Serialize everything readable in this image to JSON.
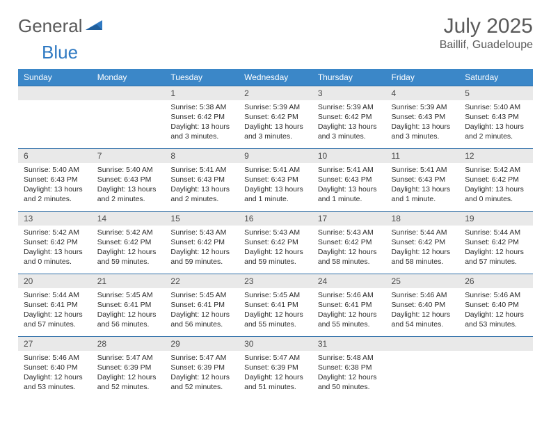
{
  "brand": {
    "part1": "General",
    "part2": "Blue"
  },
  "title": "July 2025",
  "location": "Baillif, Guadeloupe",
  "colors": {
    "header_bg": "#3b87c8",
    "header_text": "#ffffff",
    "daynum_bg": "#e9e9e9",
    "rule": "#2f6fa8",
    "text": "#2b2b2b",
    "muted": "#5a5a5a",
    "brand_blue": "#2f79c2"
  },
  "weekdays": [
    "Sunday",
    "Monday",
    "Tuesday",
    "Wednesday",
    "Thursday",
    "Friday",
    "Saturday"
  ],
  "weeks": [
    [
      {
        "n": "",
        "sunrise": "",
        "sunset": "",
        "daylight": ""
      },
      {
        "n": "",
        "sunrise": "",
        "sunset": "",
        "daylight": ""
      },
      {
        "n": "1",
        "sunrise": "Sunrise: 5:38 AM",
        "sunset": "Sunset: 6:42 PM",
        "daylight": "Daylight: 13 hours and 3 minutes."
      },
      {
        "n": "2",
        "sunrise": "Sunrise: 5:39 AM",
        "sunset": "Sunset: 6:42 PM",
        "daylight": "Daylight: 13 hours and 3 minutes."
      },
      {
        "n": "3",
        "sunrise": "Sunrise: 5:39 AM",
        "sunset": "Sunset: 6:42 PM",
        "daylight": "Daylight: 13 hours and 3 minutes."
      },
      {
        "n": "4",
        "sunrise": "Sunrise: 5:39 AM",
        "sunset": "Sunset: 6:43 PM",
        "daylight": "Daylight: 13 hours and 3 minutes."
      },
      {
        "n": "5",
        "sunrise": "Sunrise: 5:40 AM",
        "sunset": "Sunset: 6:43 PM",
        "daylight": "Daylight: 13 hours and 2 minutes."
      }
    ],
    [
      {
        "n": "6",
        "sunrise": "Sunrise: 5:40 AM",
        "sunset": "Sunset: 6:43 PM",
        "daylight": "Daylight: 13 hours and 2 minutes."
      },
      {
        "n": "7",
        "sunrise": "Sunrise: 5:40 AM",
        "sunset": "Sunset: 6:43 PM",
        "daylight": "Daylight: 13 hours and 2 minutes."
      },
      {
        "n": "8",
        "sunrise": "Sunrise: 5:41 AM",
        "sunset": "Sunset: 6:43 PM",
        "daylight": "Daylight: 13 hours and 2 minutes."
      },
      {
        "n": "9",
        "sunrise": "Sunrise: 5:41 AM",
        "sunset": "Sunset: 6:43 PM",
        "daylight": "Daylight: 13 hours and 1 minute."
      },
      {
        "n": "10",
        "sunrise": "Sunrise: 5:41 AM",
        "sunset": "Sunset: 6:43 PM",
        "daylight": "Daylight: 13 hours and 1 minute."
      },
      {
        "n": "11",
        "sunrise": "Sunrise: 5:41 AM",
        "sunset": "Sunset: 6:43 PM",
        "daylight": "Daylight: 13 hours and 1 minute."
      },
      {
        "n": "12",
        "sunrise": "Sunrise: 5:42 AM",
        "sunset": "Sunset: 6:42 PM",
        "daylight": "Daylight: 13 hours and 0 minutes."
      }
    ],
    [
      {
        "n": "13",
        "sunrise": "Sunrise: 5:42 AM",
        "sunset": "Sunset: 6:42 PM",
        "daylight": "Daylight: 13 hours and 0 minutes."
      },
      {
        "n": "14",
        "sunrise": "Sunrise: 5:42 AM",
        "sunset": "Sunset: 6:42 PM",
        "daylight": "Daylight: 12 hours and 59 minutes."
      },
      {
        "n": "15",
        "sunrise": "Sunrise: 5:43 AM",
        "sunset": "Sunset: 6:42 PM",
        "daylight": "Daylight: 12 hours and 59 minutes."
      },
      {
        "n": "16",
        "sunrise": "Sunrise: 5:43 AM",
        "sunset": "Sunset: 6:42 PM",
        "daylight": "Daylight: 12 hours and 59 minutes."
      },
      {
        "n": "17",
        "sunrise": "Sunrise: 5:43 AM",
        "sunset": "Sunset: 6:42 PM",
        "daylight": "Daylight: 12 hours and 58 minutes."
      },
      {
        "n": "18",
        "sunrise": "Sunrise: 5:44 AM",
        "sunset": "Sunset: 6:42 PM",
        "daylight": "Daylight: 12 hours and 58 minutes."
      },
      {
        "n": "19",
        "sunrise": "Sunrise: 5:44 AM",
        "sunset": "Sunset: 6:42 PM",
        "daylight": "Daylight: 12 hours and 57 minutes."
      }
    ],
    [
      {
        "n": "20",
        "sunrise": "Sunrise: 5:44 AM",
        "sunset": "Sunset: 6:41 PM",
        "daylight": "Daylight: 12 hours and 57 minutes."
      },
      {
        "n": "21",
        "sunrise": "Sunrise: 5:45 AM",
        "sunset": "Sunset: 6:41 PM",
        "daylight": "Daylight: 12 hours and 56 minutes."
      },
      {
        "n": "22",
        "sunrise": "Sunrise: 5:45 AM",
        "sunset": "Sunset: 6:41 PM",
        "daylight": "Daylight: 12 hours and 56 minutes."
      },
      {
        "n": "23",
        "sunrise": "Sunrise: 5:45 AM",
        "sunset": "Sunset: 6:41 PM",
        "daylight": "Daylight: 12 hours and 55 minutes."
      },
      {
        "n": "24",
        "sunrise": "Sunrise: 5:46 AM",
        "sunset": "Sunset: 6:41 PM",
        "daylight": "Daylight: 12 hours and 55 minutes."
      },
      {
        "n": "25",
        "sunrise": "Sunrise: 5:46 AM",
        "sunset": "Sunset: 6:40 PM",
        "daylight": "Daylight: 12 hours and 54 minutes."
      },
      {
        "n": "26",
        "sunrise": "Sunrise: 5:46 AM",
        "sunset": "Sunset: 6:40 PM",
        "daylight": "Daylight: 12 hours and 53 minutes."
      }
    ],
    [
      {
        "n": "27",
        "sunrise": "Sunrise: 5:46 AM",
        "sunset": "Sunset: 6:40 PM",
        "daylight": "Daylight: 12 hours and 53 minutes."
      },
      {
        "n": "28",
        "sunrise": "Sunrise: 5:47 AM",
        "sunset": "Sunset: 6:39 PM",
        "daylight": "Daylight: 12 hours and 52 minutes."
      },
      {
        "n": "29",
        "sunrise": "Sunrise: 5:47 AM",
        "sunset": "Sunset: 6:39 PM",
        "daylight": "Daylight: 12 hours and 52 minutes."
      },
      {
        "n": "30",
        "sunrise": "Sunrise: 5:47 AM",
        "sunset": "Sunset: 6:39 PM",
        "daylight": "Daylight: 12 hours and 51 minutes."
      },
      {
        "n": "31",
        "sunrise": "Sunrise: 5:48 AM",
        "sunset": "Sunset: 6:38 PM",
        "daylight": "Daylight: 12 hours and 50 minutes."
      },
      {
        "n": "",
        "sunrise": "",
        "sunset": "",
        "daylight": ""
      },
      {
        "n": "",
        "sunrise": "",
        "sunset": "",
        "daylight": ""
      }
    ]
  ]
}
